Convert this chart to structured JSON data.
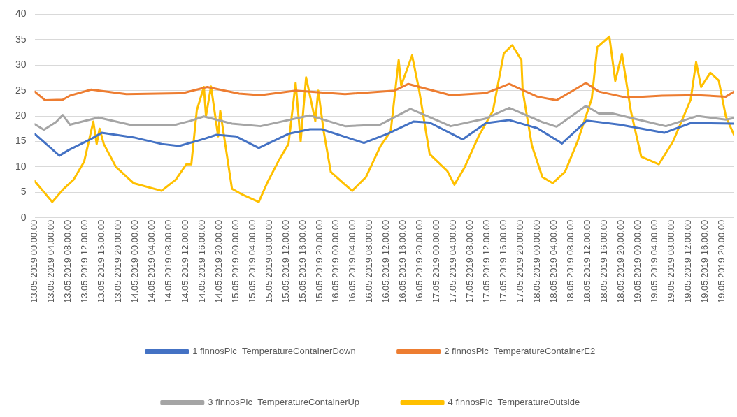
{
  "chart_data": {
    "type": "line",
    "xlim": [
      "2019-05-13T00:00",
      "2019-05-19T23:00"
    ],
    "ylim": [
      0,
      40
    ],
    "yticks": [
      0,
      5,
      10,
      15,
      20,
      25,
      30,
      35,
      40
    ],
    "xticks": [
      {
        "value": "2019-05-13T00:00",
        "label": "13.05.2019 00.00.00"
      },
      {
        "value": "2019-05-13T04:00",
        "label": "13.05.2019 04.00.00"
      },
      {
        "value": "2019-05-13T08:00",
        "label": "13.05.2019 08.00.00"
      },
      {
        "value": "2019-05-13T12:00",
        "label": "13.05.2019 12.00.00"
      },
      {
        "value": "2019-05-13T16:00",
        "label": "13.05.2019 16.00.00"
      },
      {
        "value": "2019-05-13T20:00",
        "label": "13.05.2019 20.00.00"
      },
      {
        "value": "2019-05-14T00:00",
        "label": "14.05.2019 00.00.00"
      },
      {
        "value": "2019-05-14T04:00",
        "label": "14.05.2019 04.00.00"
      },
      {
        "value": "2019-05-14T08:00",
        "label": "14.05.2019 08.00.00"
      },
      {
        "value": "2019-05-14T12:00",
        "label": "14.05.2019 12.00.00"
      },
      {
        "value": "2019-05-14T16:00",
        "label": "14.05.2019 16.00.00"
      },
      {
        "value": "2019-05-14T20:00",
        "label": "14.05.2019 20.00.00"
      },
      {
        "value": "2019-05-15T00:00",
        "label": "15.05.2019 00.00.00"
      },
      {
        "value": "2019-05-15T04:00",
        "label": "15.05.2019 04.00.00"
      },
      {
        "value": "2019-05-15T08:00",
        "label": "15.05.2019 08.00.00"
      },
      {
        "value": "2019-05-15T12:00",
        "label": "15.05.2019 12.00.00"
      },
      {
        "value": "2019-05-15T16:00",
        "label": "15.05.2019 16.00.00"
      },
      {
        "value": "2019-05-15T20:00",
        "label": "15.05.2019 20.00.00"
      },
      {
        "value": "2019-05-16T00:00",
        "label": "16.05.2019 00.00.00"
      },
      {
        "value": "2019-05-16T04:00",
        "label": "16.05.2019 04.00.00"
      },
      {
        "value": "2019-05-16T08:00",
        "label": "16.05.2019 08.00.00"
      },
      {
        "value": "2019-05-16T12:00",
        "label": "16.05.2019 12.00.00"
      },
      {
        "value": "2019-05-16T16:00",
        "label": "16.05.2019 16.00.00"
      },
      {
        "value": "2019-05-16T20:00",
        "label": "16.05.2019 20.00.00"
      },
      {
        "value": "2019-05-17T00:00",
        "label": "17.05.2019 00.00.00"
      },
      {
        "value": "2019-05-17T04:00",
        "label": "17.05.2019 04.00.00"
      },
      {
        "value": "2019-05-17T08:00",
        "label": "17.05.2019 08.00.00"
      },
      {
        "value": "2019-05-17T12:00",
        "label": "17.05.2019 12.00.00"
      },
      {
        "value": "2019-05-17T16:00",
        "label": "17.05.2019 16.00.00"
      },
      {
        "value": "2019-05-17T20:00",
        "label": "17.05.2019 20.00.00"
      },
      {
        "value": "2019-05-18T00:00",
        "label": "18.05.2019 00.00.00"
      },
      {
        "value": "2019-05-18T04:00",
        "label": "18.05.2019 04.00.00"
      },
      {
        "value": "2019-05-18T08:00",
        "label": "18.05.2019 08.00.00"
      },
      {
        "value": "2019-05-18T12:00",
        "label": "18.05.2019 12.00.00"
      },
      {
        "value": "2019-05-18T16:00",
        "label": "18.05.2019 16.00.00"
      },
      {
        "value": "2019-05-18T20:00",
        "label": "18.05.2019 20.00.00"
      },
      {
        "value": "2019-05-19T00:00",
        "label": "19.05.2019 00.00.00"
      },
      {
        "value": "2019-05-19T04:00",
        "label": "19.05.2019 04.00.00"
      },
      {
        "value": "2019-05-19T08:00",
        "label": "19.05.2019 08.00.00"
      },
      {
        "value": "2019-05-19T12:00",
        "label": "19.05.2019 12.00.00"
      },
      {
        "value": "2019-05-19T16:00",
        "label": "19.05.2019 16.00.00"
      },
      {
        "value": "2019-05-19T20:00",
        "label": "19.05.2019 20.00.00"
      }
    ],
    "grid": "y",
    "legend": "bottom",
    "marker": "none",
    "line_style": "solid",
    "series": [
      {
        "name": "1 finnosPlc_TemperatureContainerDown",
        "color": "#4472c4",
        "x": [
          "2019-05-13T00:00",
          "2019-05-13T05:54",
          "2019-05-13T08:06",
          "2019-05-13T13:30",
          "2019-05-13T16:00",
          "2019-05-13T23:36",
          "2019-05-14T06:18",
          "2019-05-14T10:30",
          "2019-05-14T16:24",
          "2019-05-14T19:24",
          "2019-05-15T00:00",
          "2019-05-15T05:30",
          "2019-05-15T12:36",
          "2019-05-15T17:42",
          "2019-05-15T20:30",
          "2019-05-16T06:36",
          "2019-05-16T12:12",
          "2019-05-16T18:24",
          "2019-05-16T22:18",
          "2019-05-17T06:12",
          "2019-05-17T11:42",
          "2019-05-17T17:18",
          "2019-05-18T00:00",
          "2019-05-18T05:54",
          "2019-05-18T11:48",
          "2019-05-18T19:42",
          "2019-05-19T06:18",
          "2019-05-19T12:36",
          "2019-05-19T23:00"
        ],
        "values": [
          16.5,
          12.2,
          13.3,
          15.5,
          16.7,
          15.8,
          14.5,
          14.1,
          15.5,
          16.3,
          16,
          13.7,
          16.5,
          17.4,
          17.4,
          14.7,
          16.5,
          18.9,
          18.7,
          15.4,
          18.6,
          19.2,
          17.6,
          14.6,
          19.1,
          18.3,
          16.7,
          18.6,
          18.5
        ]
      },
      {
        "name": "2 finnosPlc_TemperatureContainerE2",
        "color": "#ed7d31",
        "x": [
          "2019-05-13T00:00",
          "2019-05-13T02:30",
          "2019-05-13T06:42",
          "2019-05-13T08:24",
          "2019-05-13T13:30",
          "2019-05-13T21:54",
          "2019-05-14T11:24",
          "2019-05-14T17:12",
          "2019-05-15T00:48",
          "2019-05-15T05:54",
          "2019-05-15T14:18",
          "2019-05-16T02:06",
          "2019-05-16T13:54",
          "2019-05-16T17:12",
          "2019-05-17T03:18",
          "2019-05-17T11:42",
          "2019-05-17T17:18",
          "2019-05-18T00:00",
          "2019-05-18T04:36",
          "2019-05-18T11:36",
          "2019-05-18T14:42",
          "2019-05-18T21:24",
          "2019-05-19T05:48",
          "2019-05-19T14:12",
          "2019-05-19T21:00",
          "2019-05-19T23:00"
        ],
        "values": [
          24.8,
          23.1,
          23.2,
          24,
          25.2,
          24.3,
          24.5,
          25.7,
          24.4,
          24.1,
          25,
          24.3,
          25,
          26.3,
          24.1,
          24.5,
          26.3,
          23.8,
          23.1,
          26.5,
          24.8,
          23.6,
          24,
          24.1,
          23.8,
          24.8
        ]
      },
      {
        "name": "3 finnosPlc_TemperatureContainerUp",
        "color": "#a5a5a5",
        "x": [
          "2019-05-13T00:00",
          "2019-05-13T02:12",
          "2019-05-13T05:06",
          "2019-05-13T06:42",
          "2019-05-13T08:24",
          "2019-05-13T15:12",
          "2019-05-13T22:42",
          "2019-05-14T09:42",
          "2019-05-14T13:00",
          "2019-05-14T16:24",
          "2019-05-14T23:06",
          "2019-05-15T05:54",
          "2019-05-15T17:42",
          "2019-05-16T02:06",
          "2019-05-16T10:30",
          "2019-05-16T17:42",
          "2019-05-17T03:18",
          "2019-05-17T11:42",
          "2019-05-17T17:18",
          "2019-05-18T01:12",
          "2019-05-18T04:36",
          "2019-05-18T11:36",
          "2019-05-18T14:42",
          "2019-05-18T18:00",
          "2019-05-19T04:06",
          "2019-05-19T06:42",
          "2019-05-19T14:12",
          "2019-05-19T21:00",
          "2019-05-19T23:00"
        ],
        "values": [
          18.4,
          17.3,
          18.8,
          20.2,
          18.3,
          19.7,
          18.3,
          18.3,
          19,
          19.9,
          18.5,
          18,
          20.1,
          18,
          18.3,
          21.4,
          18,
          19.5,
          21.6,
          18.8,
          17.9,
          22,
          20.5,
          20.5,
          18.5,
          18,
          20,
          19.3,
          19.6
        ]
      },
      {
        "name": "4 finnosPlc_TemperatureOutside",
        "color": "#ffc000",
        "x": [
          "2019-05-13T00:00",
          "2019-05-13T04:12",
          "2019-05-13T06:42",
          "2019-05-13T09:18",
          "2019-05-13T11:48",
          "2019-05-13T14:00",
          "2019-05-13T14:48",
          "2019-05-13T15:30",
          "2019-05-13T16:30",
          "2019-05-13T19:24",
          "2019-05-13T23:36",
          "2019-05-14T06:18",
          "2019-05-14T09:42",
          "2019-05-14T12:12",
          "2019-05-14T13:24",
          "2019-05-14T14:42",
          "2019-05-14T16:24",
          "2019-05-14T16:54",
          "2019-05-14T18:06",
          "2019-05-14T19:48",
          "2019-05-14T20:18",
          "2019-05-14T23:06",
          "2019-05-15T01:42",
          "2019-05-15T05:30",
          "2019-05-15T07:36",
          "2019-05-15T10:06",
          "2019-05-15T12:36",
          "2019-05-15T14:18",
          "2019-05-15T15:30",
          "2019-05-15T16:48",
          "2019-05-15T19:00",
          "2019-05-15T19:42",
          "2019-05-15T21:00",
          "2019-05-15T22:42",
          "2019-05-16T02:06",
          "2019-05-16T03:48",
          "2019-05-16T07:06",
          "2019-05-16T10:30",
          "2019-05-16T13:00",
          "2019-05-16T14:54",
          "2019-05-16T15:30",
          "2019-05-16T18:06",
          "2019-05-16T19:48",
          "2019-05-16T22:18",
          "2019-05-17T02:30",
          "2019-05-17T04:12",
          "2019-05-17T06:42",
          "2019-05-17T10:06",
          "2019-05-17T13:24",
          "2019-05-17T16:00",
          "2019-05-17T18:00",
          "2019-05-17T20:12",
          "2019-05-17T20:30",
          "2019-05-17T22:42",
          "2019-05-18T01:12",
          "2019-05-18T03:42",
          "2019-05-18T04:36",
          "2019-05-18T06:36",
          "2019-05-18T09:36",
          "2019-05-18T13:00",
          "2019-05-18T14:18",
          "2019-05-18T17:12",
          "2019-05-18T18:36",
          "2019-05-18T20:12",
          "2019-05-18T22:18",
          "2019-05-19T00:48",
          "2019-05-19T05:00",
          "2019-05-19T08:24",
          "2019-05-19T12:36",
          "2019-05-19T13:54",
          "2019-05-19T15:06",
          "2019-05-19T17:18",
          "2019-05-19T19:18",
          "2019-05-19T21:00",
          "2019-05-19T23:00"
        ],
        "values": [
          7.2,
          3.1,
          5.5,
          7.5,
          11,
          18.9,
          14.5,
          17.5,
          14.5,
          10,
          6.8,
          5.3,
          7.5,
          10.5,
          10.5,
          21.1,
          25.7,
          20,
          25.8,
          16,
          21,
          5.7,
          4.5,
          3.1,
          7,
          11,
          14.5,
          26.5,
          15,
          27.6,
          19,
          25,
          17,
          9,
          6.5,
          5.3,
          8,
          14,
          17,
          31,
          26,
          31.9,
          25,
          12.5,
          9.2,
          6.5,
          10,
          16.2,
          21,
          32.3,
          33.9,
          31,
          25,
          14.2,
          8,
          6.8,
          7.5,
          9,
          15,
          23.4,
          33.5,
          35.6,
          26.9,
          32.2,
          21.1,
          12,
          10.5,
          15,
          23.2,
          30.6,
          25.7,
          28.5,
          27,
          19.9,
          16.2
        ]
      }
    ]
  }
}
